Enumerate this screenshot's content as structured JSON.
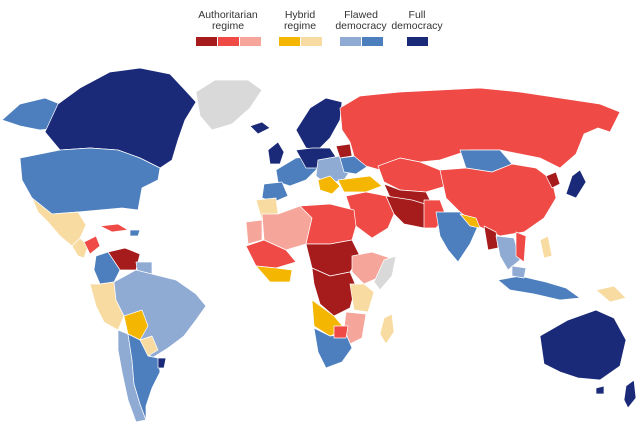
{
  "legend": {
    "groups": [
      {
        "label": "Authoritarian\nregime",
        "colors": [
          "#a61b1b",
          "#ef4a45",
          "#f6a59a"
        ]
      },
      {
        "label": "Hybrid\nregime",
        "colors": [
          "#f4b600",
          "#f8dba0"
        ]
      },
      {
        "label": "Flawed\ndemocracy",
        "colors": [
          "#8fabd4",
          "#4d7fbe"
        ]
      },
      {
        "label": "Full\ndemocracy",
        "colors": [
          "#1a2a78"
        ]
      }
    ]
  },
  "colors": {
    "no_data": "#d9d9d9",
    "ocean": "#ffffff",
    "border": "#ffffff"
  }
}
